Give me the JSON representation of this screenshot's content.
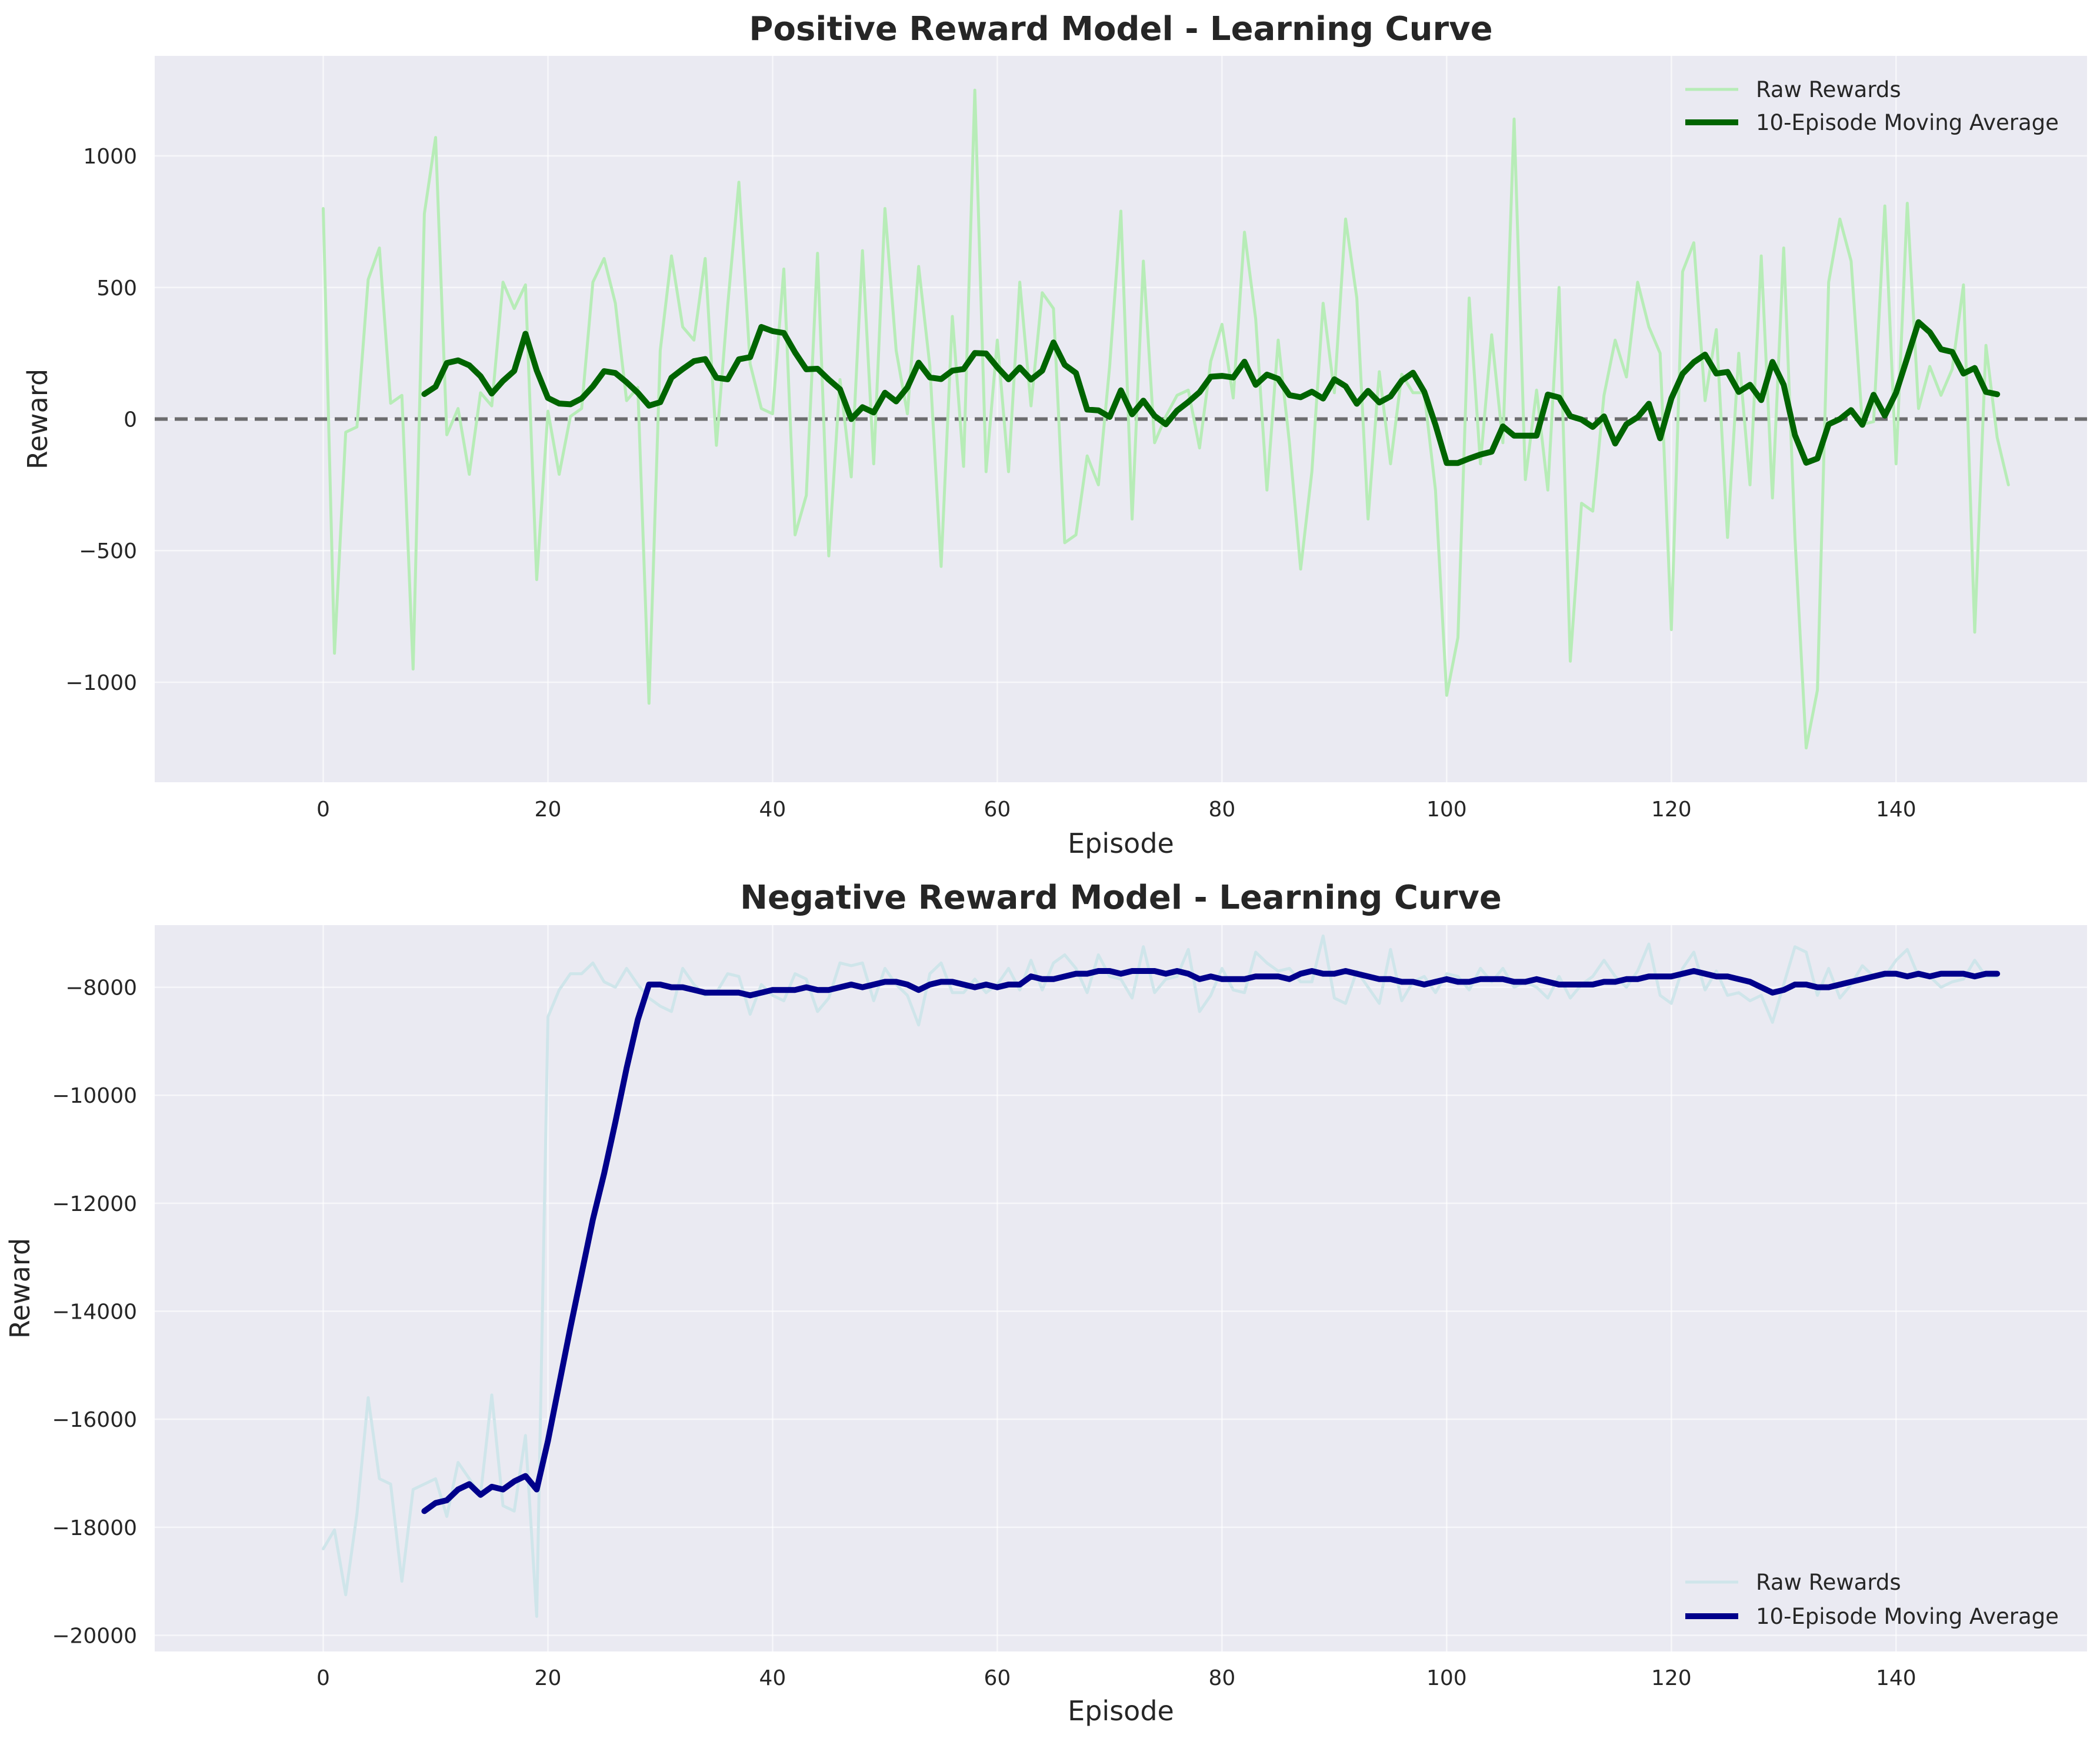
{
  "chart_data": [
    {
      "type": "line",
      "title": "Positive Reward Model - Learning Curve",
      "xlabel": "Episode",
      "ylabel": "Reward",
      "xlim": [
        -15,
        157
      ],
      "ylim": [
        -1380,
        1380
      ],
      "xticks": [
        0,
        20,
        40,
        60,
        80,
        100,
        120,
        140
      ],
      "yticks": [
        -1000,
        -500,
        0,
        500,
        1000
      ],
      "ytick_labels": [
        "−1000",
        "−500",
        "0",
        "500",
        "1000"
      ],
      "grid": true,
      "legend": "upper right",
      "reference_line": {
        "y": 0,
        "style": "dashed",
        "color": "#555555"
      },
      "series": [
        {
          "name": "Raw Rewards",
          "color": "#b7ecb7",
          "x_start": 0,
          "values": [
            800,
            -890,
            -50,
            -30,
            530,
            650,
            60,
            90,
            -950,
            780,
            1070,
            -60,
            40,
            -210,
            100,
            50,
            520,
            420,
            510,
            -610,
            30,
            -210,
            10,
            40,
            520,
            610,
            440,
            70,
            120,
            -1080,
            260,
            620,
            350,
            300,
            610,
            -100,
            430,
            900,
            210,
            40,
            20,
            570,
            -440,
            -290,
            630,
            -520,
            150,
            -220,
            640,
            -170,
            800,
            260,
            20,
            580,
            200,
            -560,
            390,
            -180,
            1250,
            -200,
            300,
            -200,
            520,
            50,
            480,
            420,
            -470,
            -440,
            -140,
            -250,
            200,
            790,
            -380,
            600,
            -90,
            10,
            90,
            110,
            -110,
            220,
            360,
            80,
            710,
            380,
            -270,
            300,
            -90,
            -570,
            -200,
            440,
            100,
            760,
            460,
            -380,
            180,
            -170,
            170,
            100,
            100,
            -270,
            -1050,
            -830,
            460,
            -170,
            320,
            -90,
            1140,
            -230,
            110,
            -270,
            500,
            -920,
            -320,
            -350,
            90,
            300,
            160,
            520,
            350,
            250,
            -800,
            560,
            670,
            70,
            340,
            -450,
            250,
            -250,
            620,
            -300,
            650,
            -450,
            -1250,
            -1030,
            520,
            760,
            600,
            -20,
            -10,
            810,
            -170,
            820,
            40,
            200,
            90,
            190,
            510,
            -810,
            280,
            -70,
            -250
          ]
        },
        {
          "name": "10-Episode Moving Average",
          "color": "#006400",
          "x_start": 9,
          "values": [
            95,
            123,
            213,
            223,
            204,
            163,
            97,
            145,
            183,
            324,
            185,
            80,
            59,
            56,
            78,
            124,
            182,
            175,
            140,
            100,
            51,
            64,
            157,
            190,
            220,
            228,
            157,
            151,
            227,
            235,
            350,
            334,
            327,
            253,
            189,
            191,
            150,
            113,
            0,
            45,
            25,
            100,
            67,
            120,
            214,
            158,
            152,
            184,
            190,
            251,
            249,
            197,
            151,
            196,
            150,
            184,
            291,
            206,
            175,
            36,
            33,
            8,
            109,
            18,
            70,
            12,
            -20,
            32,
            65,
            102,
            161,
            164,
            158,
            218,
            130,
            169,
            153,
            91,
            83,
            104,
            78,
            151,
            125,
            58,
            107,
            63,
            86,
            146,
            176,
            104,
            -22,
            -167,
            -167,
            -150,
            -135,
            -124,
            -28,
            -63,
            -63,
            -63,
            93,
            82,
            11,
            -2,
            -30,
            10,
            -93,
            -20,
            7,
            58,
            -73,
            78,
            172,
            216,
            245,
            173,
            179,
            103,
            130,
            72,
            217,
            130,
            -61,
            -166,
            -150,
            -20,
            0,
            34,
            -22,
            92,
            13,
            100,
            233,
            368,
            330,
            265,
            255,
            173,
            194,
            103,
            94
          ]
        }
      ]
    },
    {
      "type": "line",
      "title": "Negative Reward Model - Learning Curve",
      "xlabel": "Episode",
      "ylabel": "Reward",
      "xlim": [
        -15,
        157
      ],
      "ylim": [
        -20300,
        -6850
      ],
      "xticks": [
        0,
        20,
        40,
        60,
        80,
        100,
        120,
        140
      ],
      "yticks": [
        -20000,
        -18000,
        -16000,
        -14000,
        -12000,
        -10000,
        -8000
      ],
      "ytick_labels": [
        "−20000",
        "−18000",
        "−16000",
        "−14000",
        "−12000",
        "−10000",
        "−8000"
      ],
      "grid": true,
      "legend": "lower right",
      "series": [
        {
          "name": "Raw Rewards",
          "color": "#cfe5ea",
          "x_start": 0,
          "values": [
            -18400,
            -18050,
            -19250,
            -17750,
            -15600,
            -17100,
            -17200,
            -19000,
            -17300,
            -17200,
            -17100,
            -17800,
            -16800,
            -17100,
            -17400,
            -15550,
            -17600,
            -17700,
            -16300,
            -19650,
            -8550,
            -8050,
            -7750,
            -7750,
            -7550,
            -7900,
            -8000,
            -7650,
            -7950,
            -8200,
            -8350,
            -8450,
            -7650,
            -7950,
            -8150,
            -8100,
            -7750,
            -7800,
            -8500,
            -7950,
            -8150,
            -8250,
            -7750,
            -7850,
            -8450,
            -8200,
            -7550,
            -7600,
            -7550,
            -8250,
            -7650,
            -7950,
            -8150,
            -8700,
            -7750,
            -7550,
            -8100,
            -8100,
            -7850,
            -8100,
            -7950,
            -7650,
            -8050,
            -7500,
            -8050,
            -7550,
            -7400,
            -7650,
            -8100,
            -7400,
            -7800,
            -7850,
            -8200,
            -7250,
            -8100,
            -7850,
            -7800,
            -7300,
            -8450,
            -8150,
            -7650,
            -8050,
            -8100,
            -7350,
            -7550,
            -7700,
            -7650,
            -7900,
            -7900,
            -7050,
            -8200,
            -8300,
            -7700,
            -8000,
            -8300,
            -7300,
            -8250,
            -7900,
            -7800,
            -8100,
            -7750,
            -7800,
            -8050,
            -7650,
            -7900,
            -7650,
            -8000,
            -7900,
            -8000,
            -8200,
            -7800,
            -8200,
            -7950,
            -7800,
            -7500,
            -7800,
            -8000,
            -7700,
            -7200,
            -8150,
            -8300,
            -7650,
            -7350,
            -8050,
            -7700,
            -8150,
            -8100,
            -8250,
            -8150,
            -8650,
            -7950,
            -7250,
            -7350,
            -8150,
            -7650,
            -8200,
            -7950,
            -7600,
            -7800,
            -7800,
            -7500,
            -7300,
            -7800,
            -7800,
            -8000,
            -7900,
            -7850,
            -7500,
            -7800,
            -7800
          ]
        },
        {
          "name": "10-Episode Moving Average",
          "color": "#00008b",
          "x_start": 9,
          "values": [
            -17700,
            -17550,
            -17500,
            -17300,
            -17200,
            -17400,
            -17250,
            -17300,
            -17150,
            -17050,
            -17300,
            -16400,
            -15350,
            -14300,
            -13300,
            -12300,
            -11450,
            -10500,
            -9500,
            -8600,
            -7950,
            -7950,
            -8000,
            -8000,
            -8050,
            -8100,
            -8100,
            -8100,
            -8100,
            -8150,
            -8100,
            -8050,
            -8050,
            -8050,
            -8000,
            -8050,
            -8050,
            -8000,
            -7950,
            -8000,
            -7950,
            -7900,
            -7900,
            -7950,
            -8050,
            -7950,
            -7900,
            -7900,
            -7950,
            -8000,
            -7950,
            -8000,
            -7950,
            -7950,
            -7800,
            -7850,
            -7850,
            -7800,
            -7750,
            -7750,
            -7700,
            -7700,
            -7750,
            -7700,
            -7700,
            -7700,
            -7750,
            -7700,
            -7750,
            -7850,
            -7800,
            -7850,
            -7850,
            -7850,
            -7800,
            -7800,
            -7800,
            -7850,
            -7750,
            -7700,
            -7750,
            -7750,
            -7700,
            -7750,
            -7800,
            -7850,
            -7850,
            -7900,
            -7900,
            -7950,
            -7900,
            -7850,
            -7900,
            -7900,
            -7850,
            -7850,
            -7850,
            -7900,
            -7900,
            -7850,
            -7900,
            -7950,
            -7950,
            -7950,
            -7950,
            -7900,
            -7900,
            -7850,
            -7850,
            -7800,
            -7800,
            -7800,
            -7750,
            -7700,
            -7750,
            -7800,
            -7800,
            -7850,
            -7900,
            -8000,
            -8100,
            -8050,
            -7950,
            -7950,
            -8000,
            -8000,
            -7950,
            -7900,
            -7850,
            -7800,
            -7750,
            -7750,
            -7800,
            -7750,
            -7800,
            -7750,
            -7750,
            -7750,
            -7800,
            -7750,
            -7750
          ]
        }
      ]
    }
  ]
}
